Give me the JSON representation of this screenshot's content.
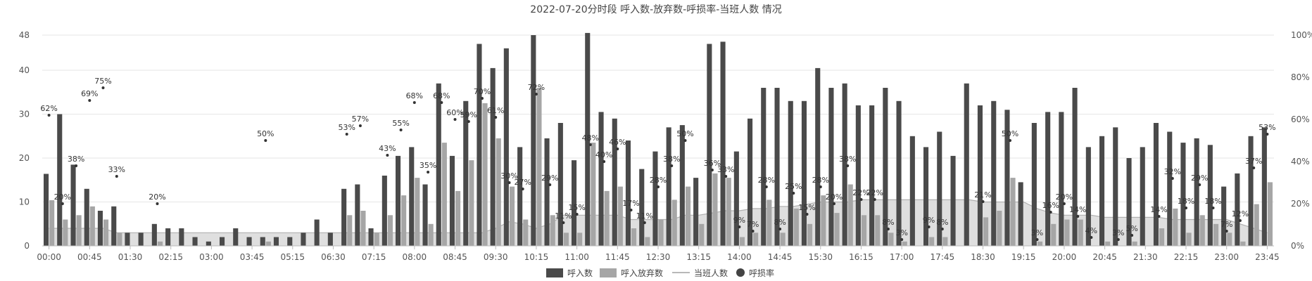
{
  "chart_data": {
    "type": "bar",
    "title": "2022-07-20分时段 呼入数-放弃数-呼损率-当班人数 情况",
    "y_ticks": [
      "0",
      "10",
      "20",
      "30",
      "40",
      "48"
    ],
    "y2_ticks": [
      "0%",
      "20%",
      "40%",
      "60%",
      "80%",
      "100%"
    ],
    "ylim": [
      0,
      48
    ],
    "y2lim": [
      0,
      100
    ],
    "x_ticks": [
      "00:00",
      "00:45",
      "01:30",
      "02:15",
      "03:00",
      "03:45",
      "05:15",
      "06:30",
      "07:15",
      "08:00",
      "08:45",
      "09:30",
      "10:15",
      "11:00",
      "11:45",
      "12:30",
      "13:15",
      "14:00",
      "14:45",
      "15:30",
      "16:15",
      "17:00",
      "17:45",
      "18:30",
      "19:15",
      "20:00",
      "20:45",
      "21:30",
      "22:15",
      "23:00",
      "23:45"
    ],
    "legend": [
      "呼入数",
      "呼入放弃数",
      "当班人数",
      "呼损率"
    ],
    "colors": {
      "calls": "#4a4a4a",
      "abandoned": "#a6a6a6",
      "staff_fill": "#d9d9d9",
      "staff_line": "#b0b0b0",
      "rate": "#333333"
    },
    "series": [
      {
        "name": "呼入数",
        "values": [
          16.4,
          30,
          18.5,
          13,
          8,
          9,
          3,
          3,
          5,
          4,
          4,
          2,
          1,
          2,
          4,
          2,
          2,
          2,
          2,
          3,
          6,
          3,
          13,
          14,
          4,
          16,
          20.5,
          22.5,
          14,
          37,
          20.5,
          33,
          46,
          40.5,
          45,
          22.5,
          48,
          24.5,
          28,
          19.5,
          48.5,
          30.5,
          29,
          24,
          17.5,
          21.5,
          27,
          27.5,
          15.5,
          46,
          46.5,
          21.5,
          29,
          36,
          36,
          33,
          33,
          40.5,
          36,
          37,
          32,
          32,
          36,
          33,
          25,
          22.5,
          26,
          20.5,
          37,
          32,
          33,
          31,
          14.5,
          28,
          30.5,
          30.5,
          36,
          22.5,
          25,
          27,
          20,
          22.5,
          28,
          26,
          23.5,
          24.5,
          23,
          13.5,
          16.5,
          25,
          27
        ]
      },
      {
        "name": "呼入放弃数",
        "values": [
          10.4,
          6,
          7,
          9,
          6,
          3,
          0,
          0,
          1,
          0,
          0,
          0,
          0,
          0,
          0,
          0,
          1,
          0,
          0,
          0,
          0,
          0,
          7,
          8,
          3,
          7,
          11.5,
          15.5,
          5,
          23.5,
          12.5,
          19.5,
          32.5,
          24.5,
          13.5,
          6,
          36,
          7,
          3,
          3,
          23.5,
          12.5,
          13.5,
          4,
          2,
          6,
          10.5,
          13.5,
          5,
          16.5,
          15.5,
          2,
          3,
          10.5,
          3,
          8.5,
          5,
          11.5,
          7.5,
          14,
          7,
          7,
          3,
          1,
          0,
          2,
          2,
          0,
          0,
          6.5,
          8,
          15.5,
          0,
          1,
          5,
          6,
          6,
          0,
          1,
          0,
          1,
          0,
          4,
          8.5,
          3,
          7,
          5,
          3,
          1,
          9.5,
          14.5
        ]
      },
      {
        "name": "当班人数",
        "values": [
          4,
          4,
          4,
          4,
          4,
          3,
          3,
          3,
          3,
          3,
          3,
          3,
          3,
          3,
          3,
          3,
          3,
          3,
          3,
          3,
          3,
          3,
          3,
          3,
          3,
          3,
          3,
          3,
          3,
          3,
          3,
          3,
          3,
          4,
          5.5,
          5,
          4,
          5,
          7,
          7,
          7,
          7,
          7,
          6,
          6,
          6,
          6,
          7,
          7,
          7.5,
          8,
          8,
          8.5,
          8.5,
          9,
          9,
          9.5,
          10,
          10,
          10,
          10.5,
          10.5,
          10.5,
          10.5,
          10.5,
          10.5,
          10.5,
          10.5,
          10.5,
          10,
          10,
          10,
          10,
          8.5,
          7.5,
          7,
          7,
          7,
          6.5,
          6.5,
          6.5,
          6.5,
          6.5,
          6,
          6,
          6,
          6,
          6,
          5,
          4,
          3
        ]
      },
      {
        "name": "呼损率",
        "values": [
          62,
          20,
          38,
          69,
          75,
          33,
          null,
          null,
          20,
          null,
          null,
          null,
          null,
          null,
          null,
          null,
          50,
          null,
          null,
          null,
          null,
          null,
          53,
          57,
          null,
          43,
          55,
          68,
          35,
          68,
          60,
          59,
          70,
          61,
          30,
          27,
          72,
          29,
          11,
          15,
          48,
          40,
          46,
          17,
          11,
          28,
          38,
          50,
          null,
          36,
          33,
          9,
          7,
          28,
          8,
          25,
          15,
          28,
          20,
          38,
          22,
          22,
          8,
          3,
          null,
          9,
          8,
          null,
          null,
          21,
          null,
          50,
          null,
          3,
          16,
          20,
          14,
          4,
          null,
          3,
          5,
          null,
          14,
          32,
          18,
          29,
          18,
          7,
          12,
          37,
          53
        ],
        "labels": [
          "62%",
          "20%",
          "38%",
          "69%",
          "75%",
          "33%",
          "",
          "",
          "20%",
          "",
          "",
          "",
          "",
          "",
          "",
          "",
          "50%",
          "",
          "",
          "",
          "",
          "",
          "53%",
          "57%",
          "",
          "43%",
          "55%",
          "68%",
          "35%",
          "68%",
          "60%",
          "59%",
          "70%",
          "61%",
          "30%",
          "27%",
          "72%",
          "29%",
          "11%",
          "15%",
          "48%",
          "40%",
          "46%",
          "17%",
          "11%",
          "28%",
          "38%",
          "50%",
          "",
          "36%",
          "33%",
          "9%",
          "7%",
          "28%",
          "8%",
          "25%",
          "15%",
          "28%",
          "20%",
          "38%",
          "22%",
          "22%",
          "8%",
          "3%",
          "",
          "9%",
          "8%",
          "",
          "",
          "21%",
          "",
          "50%",
          "",
          "3%",
          "16%",
          "20%",
          "14%",
          "4%",
          "",
          "3%",
          "5%",
          "",
          "14%",
          "32%",
          "18%",
          "29%",
          "18%",
          "7%",
          "12%",
          "37%",
          "53%"
        ]
      }
    ],
    "grid": true,
    "legend_position": "bottom"
  }
}
